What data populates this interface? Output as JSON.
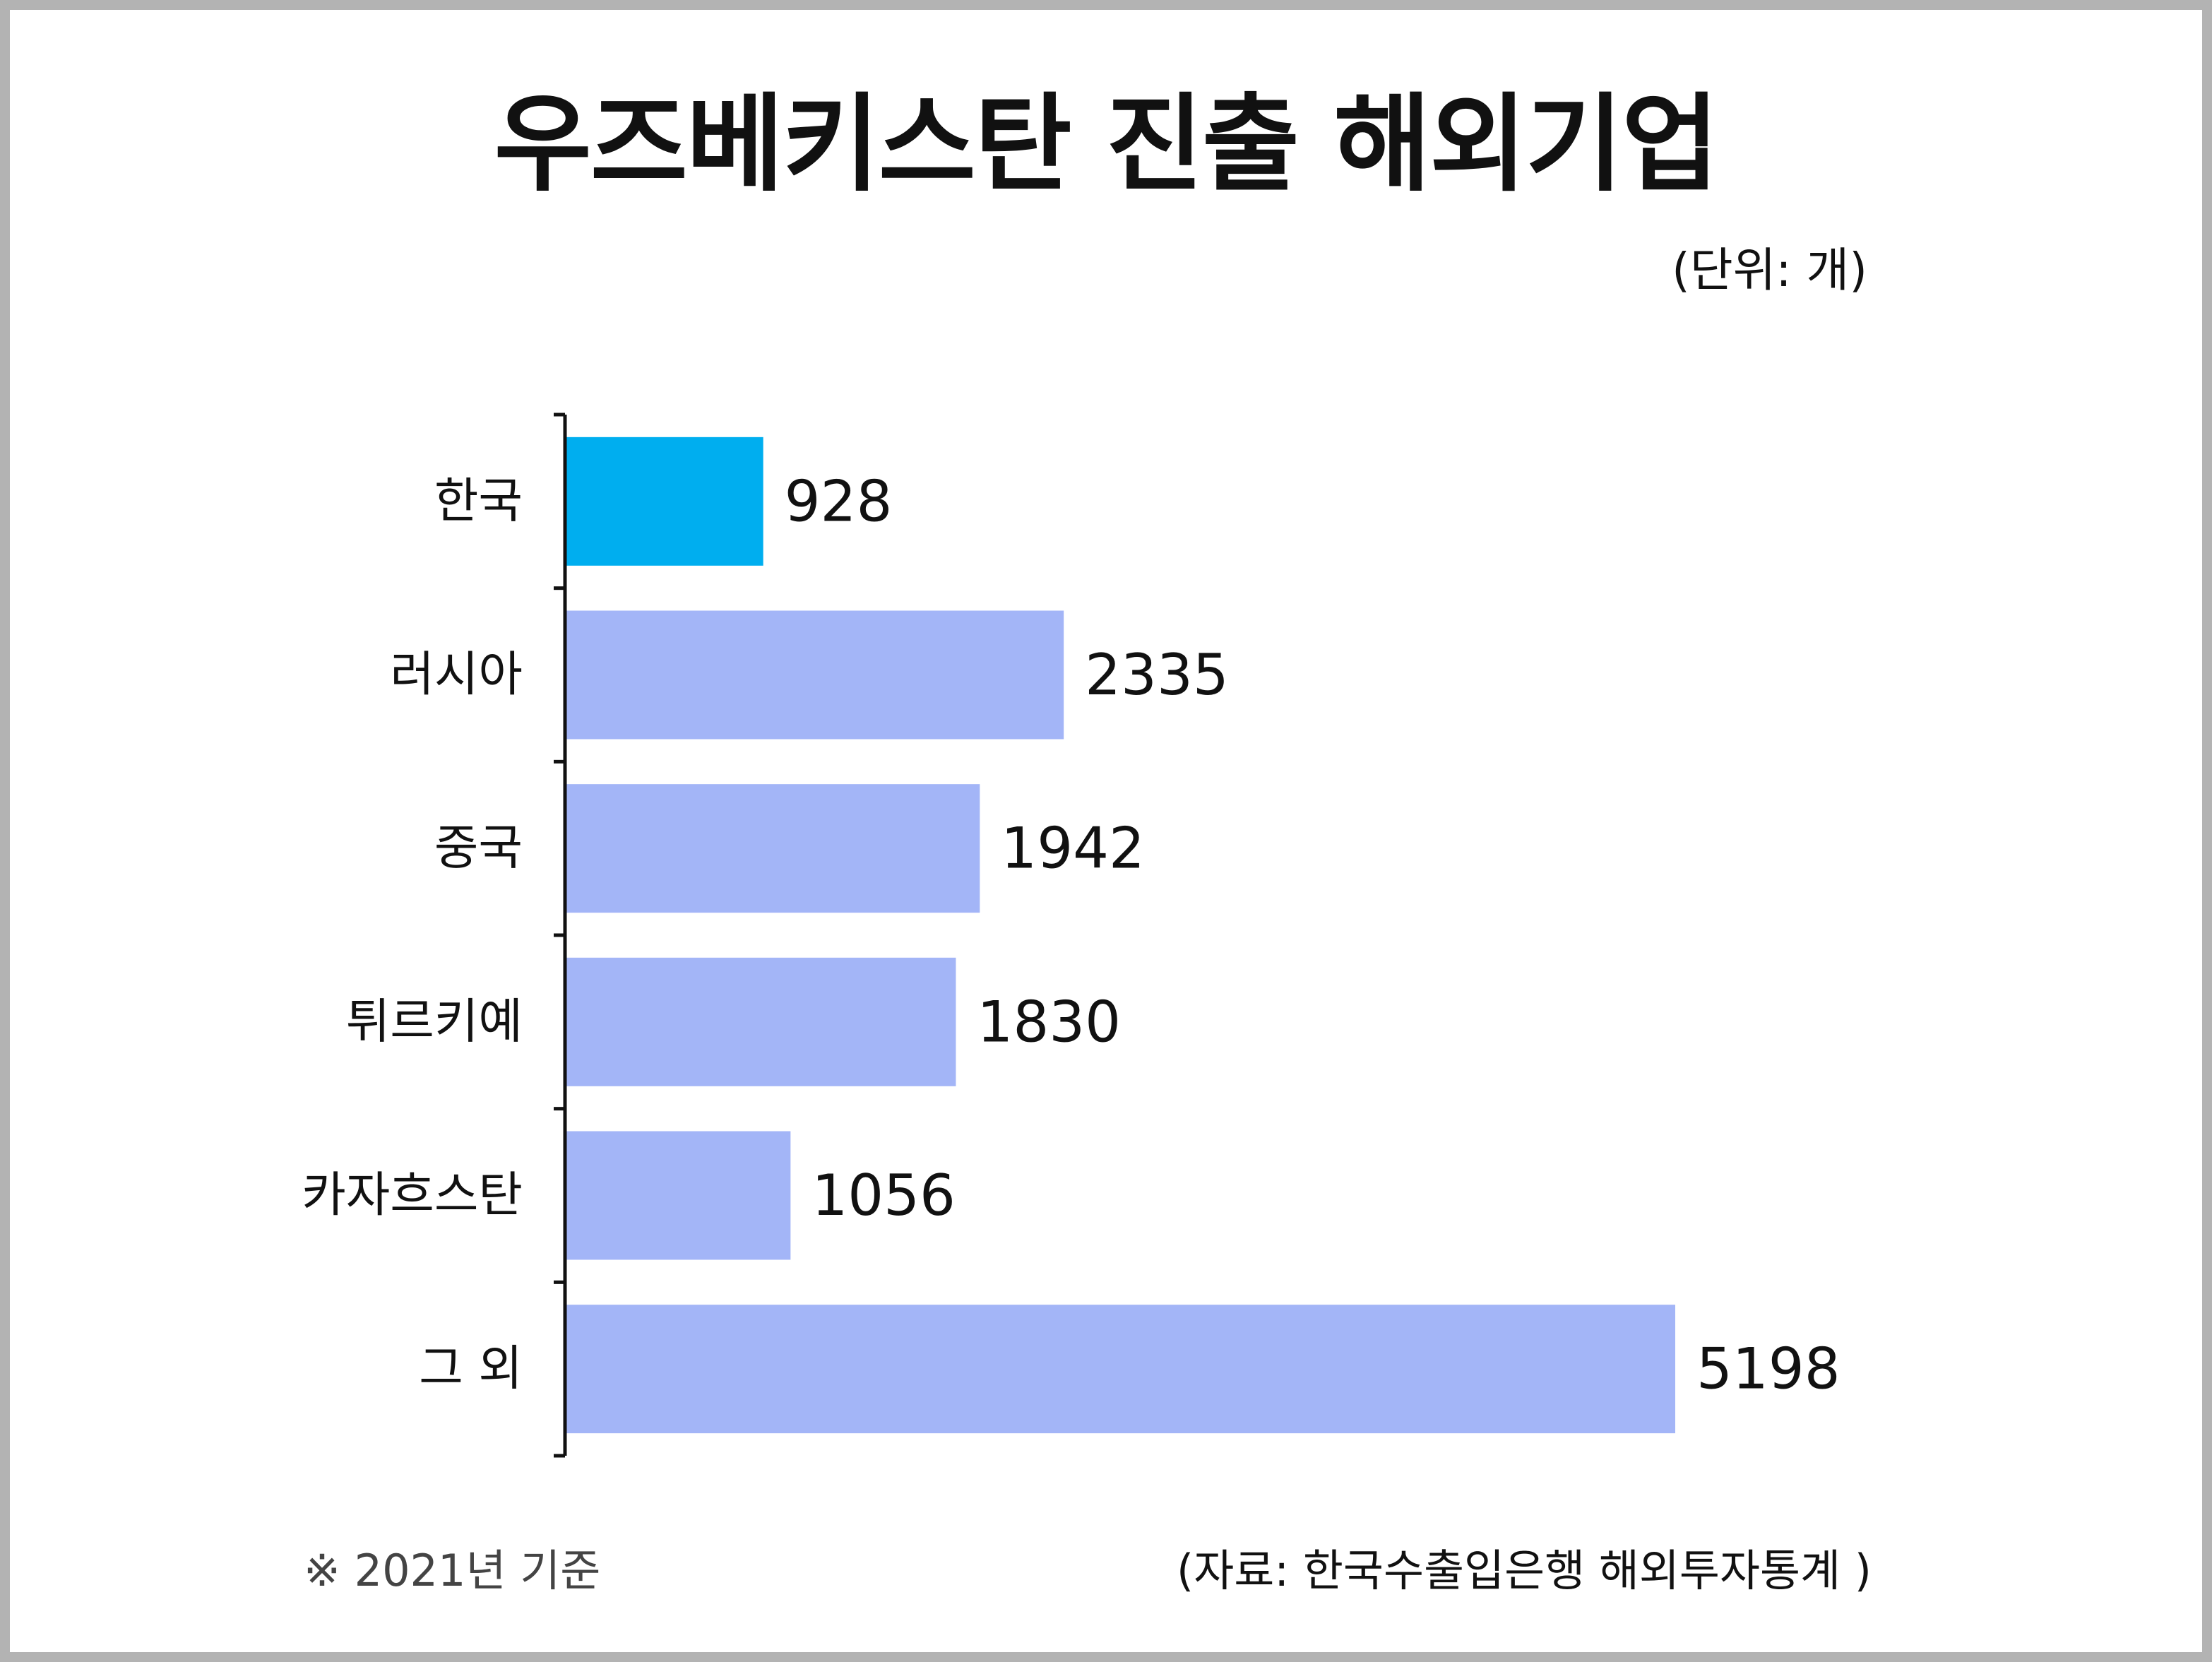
{
  "chart_data": {
    "type": "bar",
    "orientation": "horizontal",
    "title": "우즈베키스탄 진출 해외기업",
    "unit_label": "(단위: 개)",
    "categories": [
      "한국",
      "러시아",
      "중국",
      "튀르키예",
      "카자흐스탄",
      "그 외"
    ],
    "values": [
      928,
      2335,
      1942,
      1830,
      1056,
      5198
    ],
    "highlight_index": 0,
    "xlim": [
      0,
      5198
    ],
    "grid": false,
    "legend": "none",
    "colors": {
      "highlight": "#00AEEF",
      "default": "#A3B5F7",
      "axis": "#111111"
    }
  },
  "footnotes": {
    "basis": "※ 2021년 기준",
    "source": "(자료: 한국수출입은행 해외투자통계 )"
  }
}
